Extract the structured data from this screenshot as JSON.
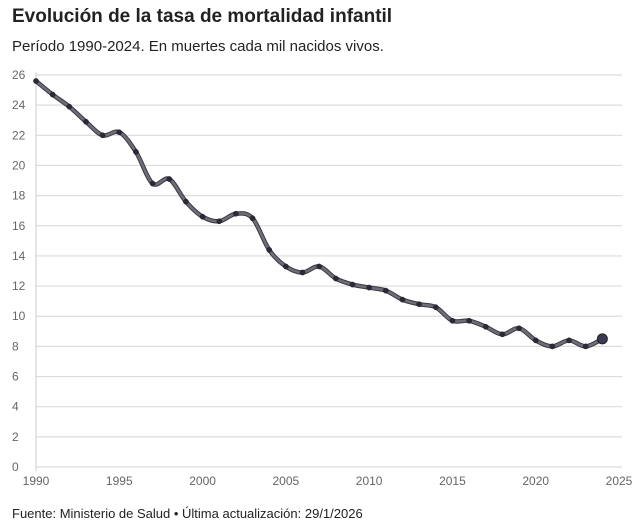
{
  "title": "Evolución de la tasa de mortalidad infantil",
  "subtitle": "Período 1990-2024. En muertes cada mil nacidos vivos.",
  "source": "Fuente: Ministerio de Salud • Última actualización: 29/1/2026",
  "chart_data": {
    "type": "line",
    "title": "Evolución de la tasa de mortalidad infantil",
    "xlabel": "",
    "ylabel": "",
    "xlim": [
      1990,
      2025
    ],
    "ylim": [
      0,
      26
    ],
    "grid": true,
    "xticks": [
      1990,
      1995,
      2000,
      2005,
      2010,
      2015,
      2020,
      2025
    ],
    "yticks": [
      0,
      2,
      4,
      6,
      8,
      10,
      12,
      14,
      16,
      18,
      20,
      22,
      24,
      26
    ],
    "line_color": "#6e6e78",
    "point_color": "#2a2a3a",
    "series": [
      {
        "name": "Tasa de mortalidad infantil",
        "x": [
          1990,
          1991,
          1992,
          1993,
          1994,
          1995,
          1996,
          1997,
          1998,
          1999,
          2000,
          2001,
          2002,
          2003,
          2004,
          2005,
          2006,
          2007,
          2008,
          2009,
          2010,
          2011,
          2012,
          2013,
          2014,
          2015,
          2016,
          2017,
          2018,
          2019,
          2020,
          2021,
          2022,
          2023,
          2024
        ],
        "values": [
          25.6,
          24.7,
          23.9,
          22.9,
          22.0,
          22.2,
          20.9,
          18.8,
          19.1,
          17.6,
          16.6,
          16.3,
          16.8,
          16.5,
          14.4,
          13.3,
          12.9,
          13.3,
          12.5,
          12.1,
          11.9,
          11.7,
          11.1,
          10.8,
          10.6,
          9.7,
          9.7,
          9.3,
          8.8,
          9.2,
          8.4,
          8.0,
          8.4,
          8.0,
          8.5
        ]
      }
    ]
  }
}
